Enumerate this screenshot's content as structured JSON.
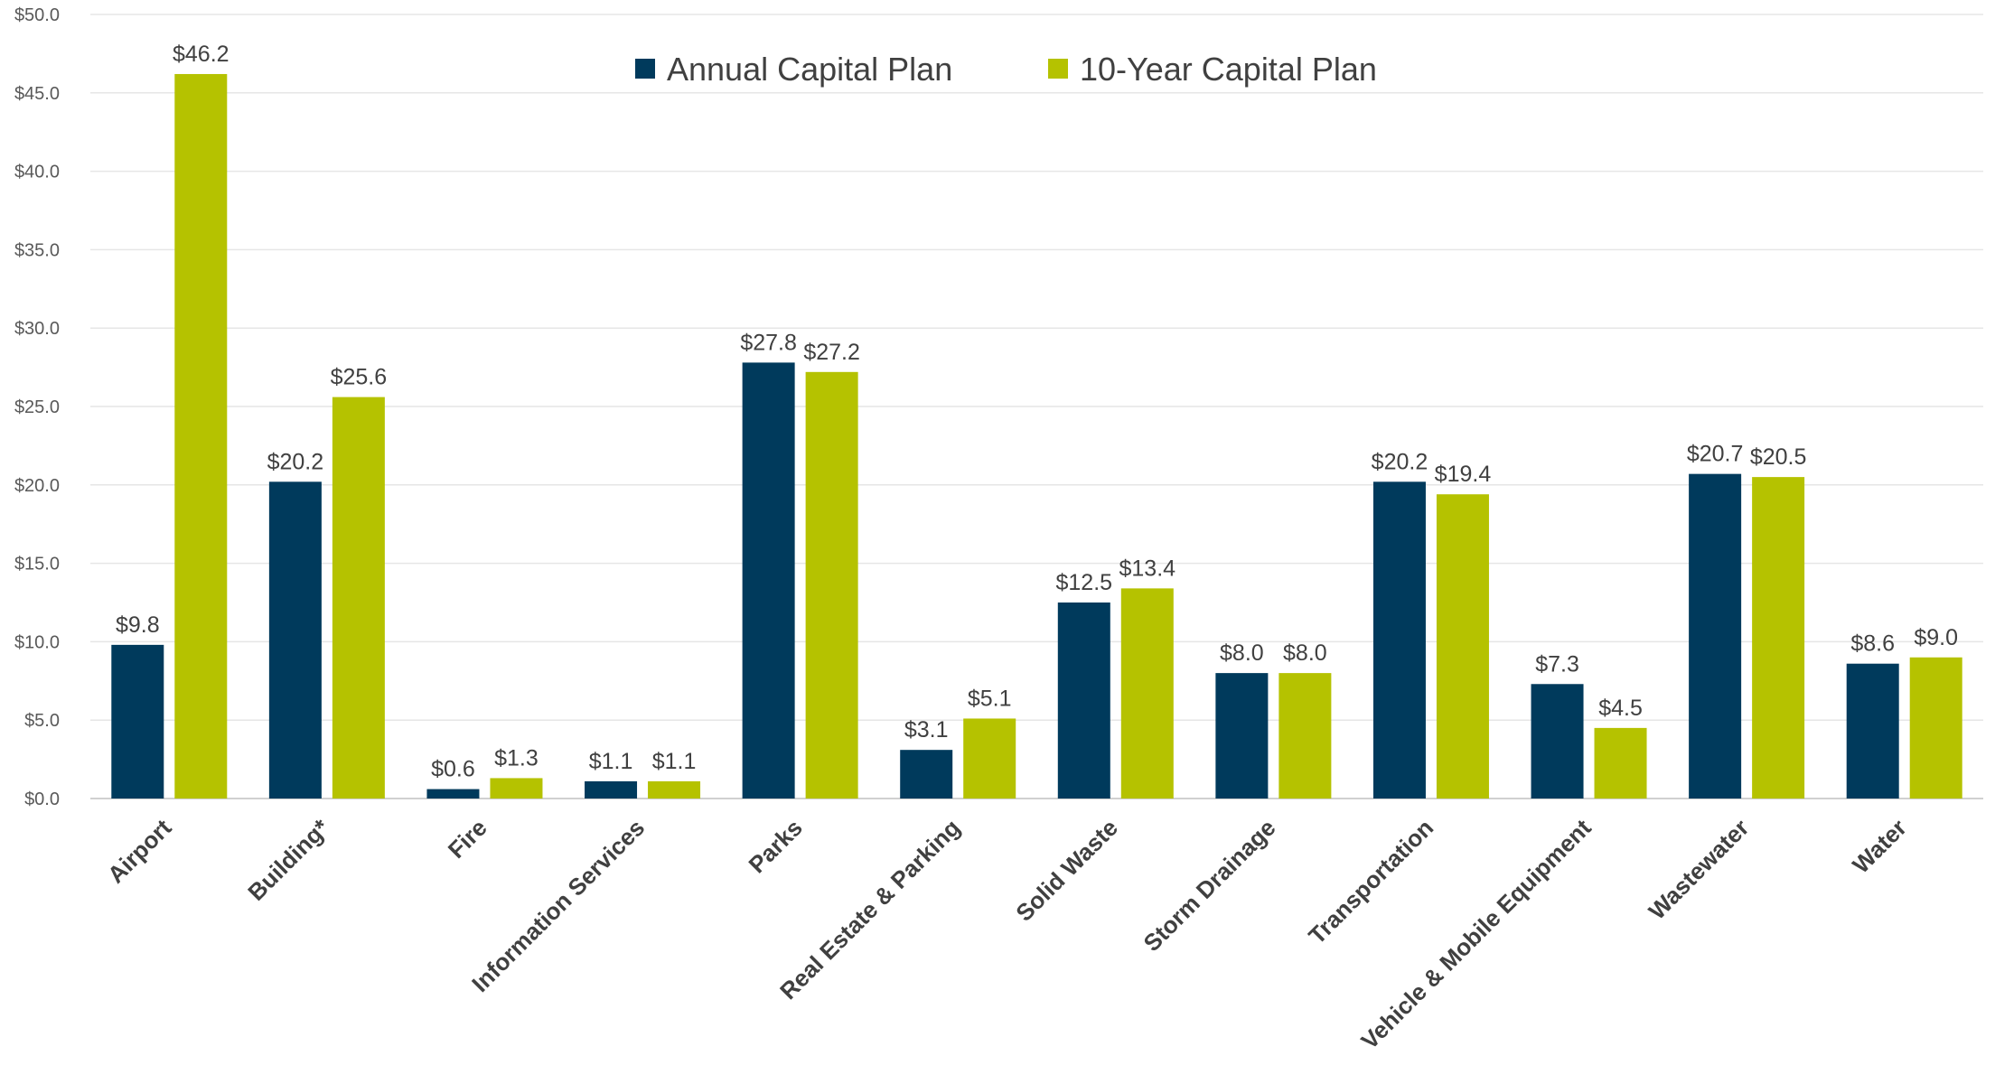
{
  "chart_data": {
    "type": "bar",
    "title": "",
    "xlabel": "",
    "ylabel": "",
    "ylim": [
      0,
      50
    ],
    "y_ticks": [
      "$0.0",
      "$5.0",
      "$10.0",
      "$15.0",
      "$20.0",
      "$25.0",
      "$30.0",
      "$35.0",
      "$40.0",
      "$45.0",
      "$50.0"
    ],
    "y_tick_values": [
      0,
      5,
      10,
      15,
      20,
      25,
      30,
      35,
      40,
      45,
      50
    ],
    "grid": true,
    "legend_position": "top-center",
    "categories": [
      "Airport",
      "Building*",
      "Fire",
      "Information Services",
      "Parks",
      "Real Estate & Parking",
      "Solid Waste",
      "Storm Drainage",
      "Transportation",
      "Vehicle &  Mobile Equipment",
      "Wastewater",
      "Water"
    ],
    "series": [
      {
        "name": "Annual Capital Plan",
        "color": "#003a5c",
        "values": [
          9.8,
          20.2,
          0.6,
          1.1,
          27.8,
          3.1,
          12.5,
          8.0,
          20.2,
          7.3,
          20.7,
          8.6
        ],
        "labels": [
          "$9.8",
          "$20.2",
          "$0.6",
          "$1.1",
          "$27.8",
          "$3.1",
          "$12.5",
          "$8.0",
          "$20.2",
          "$7.3",
          "$20.7",
          "$8.6"
        ]
      },
      {
        "name": "10-Year Capital Plan",
        "color": "#b5c200",
        "values": [
          46.2,
          25.6,
          1.3,
          1.1,
          27.2,
          5.1,
          13.4,
          8.0,
          19.4,
          4.5,
          20.5,
          9.0
        ],
        "labels": [
          "$46.2",
          "$25.6",
          "$1.3",
          "$1.1",
          "$27.2",
          "$5.1",
          "$13.4",
          "$8.0",
          "$19.4",
          "$4.5",
          "$20.5",
          "$9.0"
        ]
      }
    ]
  }
}
